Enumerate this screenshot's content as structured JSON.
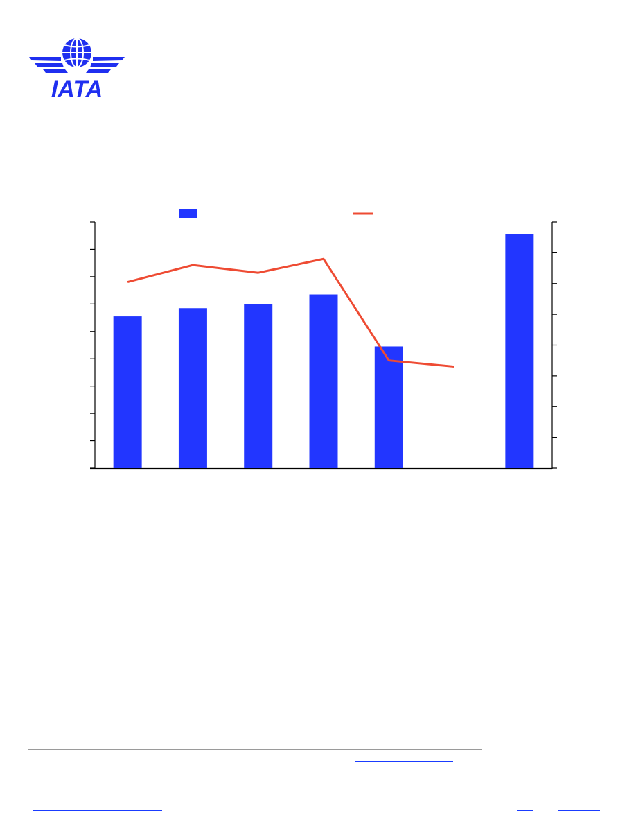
{
  "brand": {
    "logo_text": "IATA",
    "logo_color": "#1f2ff0"
  },
  "colors": {
    "bar": "#2236ff",
    "line": "#ee4b33",
    "axis": "#000000",
    "link": "#1a3cff",
    "box_border": "#9a9a9a"
  },
  "chart_data": {
    "type": "bar",
    "category_count": 7,
    "series": [
      {
        "type": "bar",
        "axis": "left",
        "values": [
          5.55,
          5.85,
          6.0,
          6.35,
          4.45,
          null,
          8.55
        ]
      },
      {
        "type": "line",
        "axis": "right",
        "values": [
          6.05,
          6.6,
          6.35,
          6.8,
          3.5,
          3.3,
          null
        ]
      }
    ],
    "y_left": {
      "range": [
        0,
        9
      ],
      "ticks": 10
    },
    "y_right": {
      "range": [
        0,
        8
      ],
      "ticks": 9
    },
    "legend": {
      "position": "top"
    },
    "grid": false
  }
}
